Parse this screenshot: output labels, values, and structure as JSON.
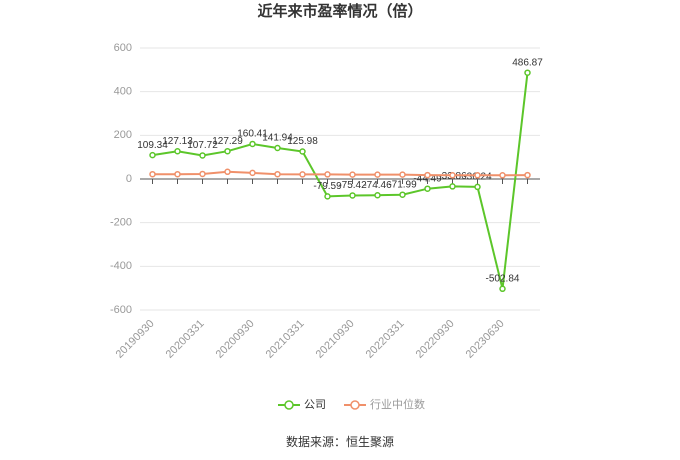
{
  "chart_data": {
    "type": "line",
    "title": "近年来市盈率情况（倍）",
    "categories": [
      "20190930",
      null,
      "20200331",
      null,
      "20200930",
      null,
      "20210331",
      null,
      "20210930",
      null,
      "20220331",
      null,
      "20220930",
      null,
      "20230630",
      null
    ],
    "series": [
      {
        "name": "公司",
        "color": "#5cc62a",
        "values": [
          109.34,
          127.13,
          107.72,
          127.29,
          160.41,
          141.94,
          125.98,
          -79.59,
          -75.42,
          -74.46,
          -71.99,
          -44.49,
          -33.86,
          -36.24,
          -502.84,
          486.87
        ]
      },
      {
        "name": "行业中位数",
        "color": "#f0906a",
        "values": [
          22,
          22,
          23,
          33,
          28,
          22,
          21,
          21,
          20,
          20,
          20,
          18,
          17,
          17,
          17,
          18
        ]
      }
    ],
    "ylim": [
      -600,
      600
    ],
    "yticks": [
      -600,
      -400,
      -200,
      0,
      200,
      400,
      600
    ],
    "grid": true,
    "source": "数据来源：恒生聚源"
  }
}
